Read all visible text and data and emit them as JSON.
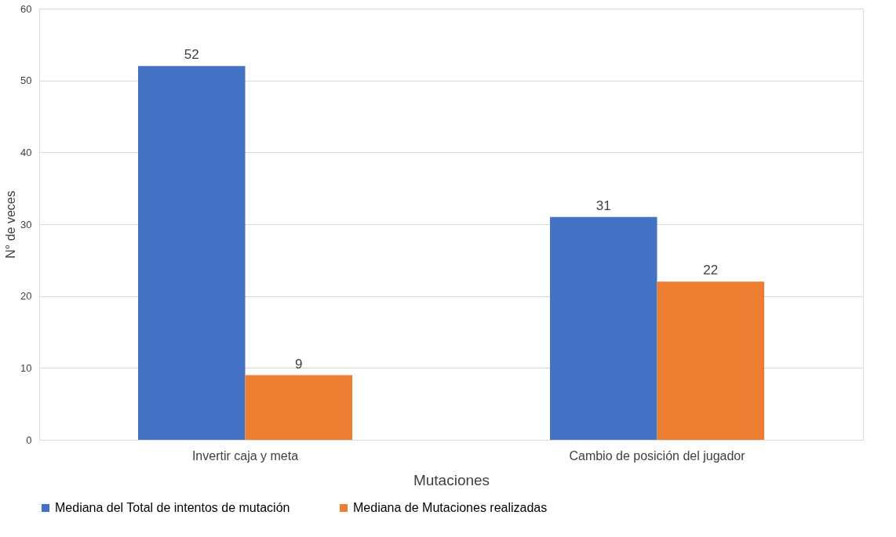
{
  "chart_data": {
    "type": "bar",
    "xlabel": "Mutaciones",
    "ylabel": "N° de veces",
    "categories": [
      "Invertir caja y meta",
      "Cambio de posición del jugador"
    ],
    "series": [
      {
        "name": "Mediana del Total de intentos de mutación",
        "color": "#4472c4",
        "values": [
          52,
          31
        ]
      },
      {
        "name": "Mediana de Mutaciones realizadas",
        "color": "#ed7d31",
        "values": [
          9,
          22
        ]
      }
    ],
    "ylim": [
      0,
      60
    ],
    "yticks": [
      0,
      10,
      20,
      30,
      40,
      50,
      60
    ],
    "grid": "y",
    "legend": "bottom",
    "data_labels": true
  }
}
